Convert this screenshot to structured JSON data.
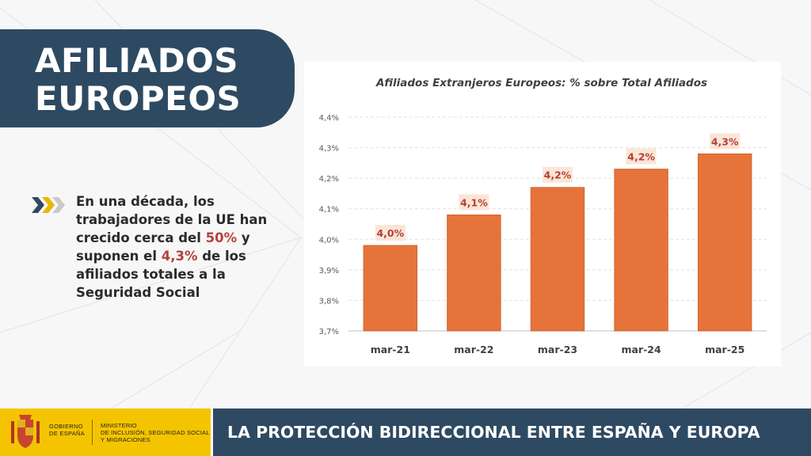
{
  "header": {
    "title_line1": "AFILIADOS",
    "title_line2": "EUROPEOS"
  },
  "bullet_icon": "triple-chevron-right-icon",
  "description": {
    "part1": "En una década, los trabajadores de la UE han crecido cerca del ",
    "highlight1": "50%",
    "part2": " y suponen el ",
    "highlight2": "4,3%",
    "part3": " de los afiliados totales a la Seguridad Social"
  },
  "colors": {
    "navy": "#2e4a62",
    "bar": "#e6733a",
    "highlight": "#b4413a",
    "label_bg": "#fbe5d6",
    "gov_yellow": "#f5c400"
  },
  "chart_data": {
    "type": "bar",
    "title": "Afiliados Extranjeros Europeos: % sobre Total Afiliados",
    "categories": [
      "mar-21",
      "mar-22",
      "mar-23",
      "mar-24",
      "mar-25"
    ],
    "values": [
      3.98,
      4.08,
      4.17,
      4.23,
      4.28
    ],
    "data_labels": [
      "4,0%",
      "4,1%",
      "4,2%",
      "4,2%",
      "4,3%"
    ],
    "ylim": [
      3.7,
      4.4
    ],
    "yticks": [
      3.7,
      3.8,
      3.9,
      4.0,
      4.1,
      4.2,
      4.3,
      4.4
    ],
    "ytick_labels": [
      "3,7%",
      "3,8%",
      "3,9%",
      "4,0%",
      "4,1%",
      "4,2%",
      "4,3%",
      "4,4%"
    ],
    "grid": true,
    "xlabel": "",
    "ylabel": ""
  },
  "footer": {
    "gov_line1": "GOBIERNO",
    "gov_line2": "DE ESPAÑA",
    "ministry_line1": "MINISTERIO",
    "ministry_line2": "DE INCLUSIÓN, SEGURIDAD SOCIAL",
    "ministry_line3": "Y MIGRACIONES",
    "banner": "LA PROTECCIÓN BIDIRECCIONAL ENTRE ESPAÑA Y EUROPA"
  }
}
